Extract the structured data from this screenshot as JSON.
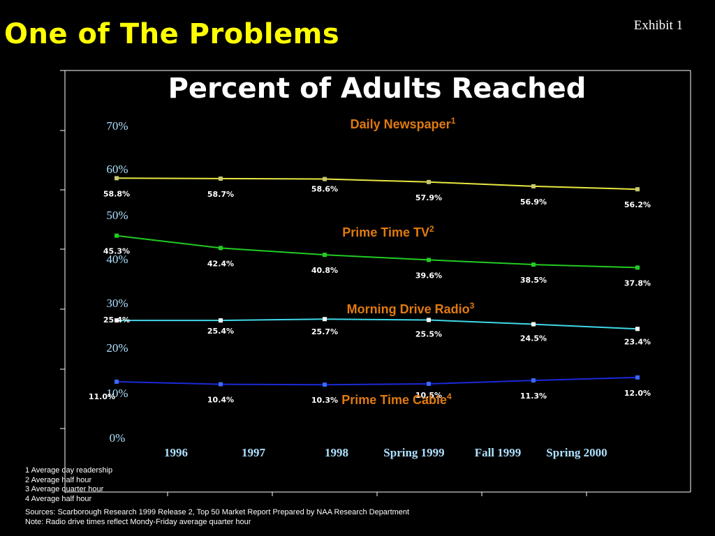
{
  "slide": {
    "title": "One of The Problems",
    "exhibit": "Exhibit 1"
  },
  "chart_data": {
    "type": "line",
    "title": "Percent of Adults Reached",
    "categories": [
      "1996",
      "1997",
      "1998",
      "Spring 1999",
      "Fall 1999",
      "Spring 2000"
    ],
    "y_tick_labels": [
      "0%",
      "10%",
      "20%",
      "30%",
      "40%",
      "50%",
      "60%",
      "70%"
    ],
    "grid": false,
    "series": [
      {
        "name": "Daily Newspaper",
        "superscript": "1",
        "color": "#e8e840",
        "marker_color": "#c8c870",
        "label_color": "#e07a10",
        "values": [
          58.8,
          58.7,
          58.6,
          57.9,
          56.9,
          56.2
        ],
        "labels": [
          "58.8%",
          "58.7%",
          "58.6%",
          "57.9%",
          "56.9%",
          "56.2%"
        ]
      },
      {
        "name": "Prime Time TV",
        "superscript": "2",
        "color": "#22cc22",
        "marker_color": "#22cc22",
        "label_color": "#e07a10",
        "values": [
          45.3,
          42.4,
          40.8,
          39.6,
          38.5,
          37.8
        ],
        "labels": [
          "45.3%",
          "42.4%",
          "40.8%",
          "39.6%",
          "38.5%",
          "37.8%"
        ]
      },
      {
        "name": "Morning Drive Radio",
        "superscript": "3",
        "color": "#40d8e8",
        "marker_color": "#ffffff",
        "label_color": "#e07a10",
        "values": [
          25.4,
          25.4,
          25.7,
          25.5,
          24.5,
          23.4
        ],
        "labels": [
          "25.4%",
          "25.4%",
          "25.7%",
          "25.5%",
          "24.5%",
          "23.4%"
        ]
      },
      {
        "name": "Prime Time Cable",
        "superscript": "4",
        "color": "#1a2ad8",
        "marker_color": "#3a6aff",
        "label_color": "#e07a10",
        "values": [
          11.0,
          10.4,
          10.3,
          10.5,
          11.3,
          12.0
        ],
        "labels": [
          "11.0%",
          "10.4%",
          "10.3%",
          "10.5%",
          "11.3%",
          "12.0%"
        ]
      }
    ]
  },
  "footnotes": [
    "1 Average day readership",
    "2 Average half hour",
    "3 Average quarter hour",
    "4 Average half hour"
  ],
  "sources": [
    "Sources: Scarborough Research 1999 Release 2, Top 50 Market Report Prepared by NAA Research Department",
    "Note: Radio drive times reflect Mondy-Friday average quarter hour"
  ]
}
